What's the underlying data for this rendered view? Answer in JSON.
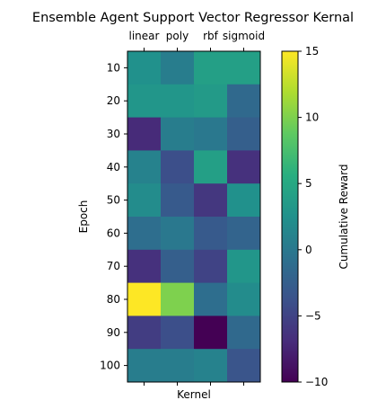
{
  "chart_data": {
    "type": "heatmap",
    "title": "Ensemble Agent Support Vector Regressor Kernal",
    "xlabel": "Kernel",
    "ylabel": "Epoch",
    "x_categories": [
      "linear",
      "poly",
      "rbf",
      "sigmoid"
    ],
    "y_categories": [
      "10",
      "20",
      "30",
      "40",
      "50",
      "60",
      "70",
      "80",
      "90",
      "100"
    ],
    "values": [
      [
        2.5,
        0.5,
        4.0,
        4.0
      ],
      [
        3.0,
        3.0,
        3.5,
        -1.5
      ],
      [
        -7.0,
        0.5,
        0.0,
        -2.5
      ],
      [
        1.0,
        -4.0,
        4.0,
        -6.5
      ],
      [
        2.0,
        -3.0,
        -6.0,
        2.5
      ],
      [
        -1.0,
        0.0,
        -3.0,
        -2.0
      ],
      [
        -6.5,
        -2.5,
        -5.0,
        3.0
      ],
      [
        15.0,
        10.0,
        -1.0,
        2.0
      ],
      [
        -5.5,
        -4.0,
        -10.0,
        -1.5
      ],
      [
        0.5,
        0.5,
        1.0,
        -3.5
      ]
    ],
    "x_ticks_position": "top",
    "colorbar": {
      "label": "Cumulative Reward",
      "min": -10,
      "max": 15,
      "ticks": [
        -10,
        -5,
        0,
        5,
        10,
        15
      ],
      "colormap": "viridis"
    },
    "grid": false
  }
}
